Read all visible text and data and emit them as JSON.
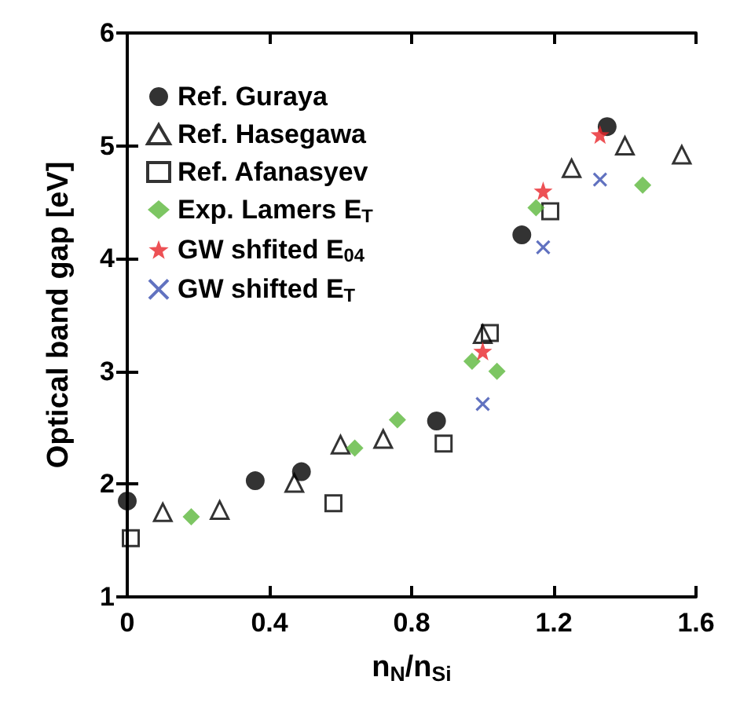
{
  "chart_data": {
    "type": "scatter",
    "xlabel": "n$_{N}$/n$_{Si}$",
    "ylabel": "Optical band gap [eV]",
    "xlim": [
      0,
      1.6
    ],
    "xticks": [
      0,
      0.4,
      0.8,
      1.2,
      1.6
    ],
    "ylim": [
      1,
      6
    ],
    "yticks": [
      1,
      2,
      3,
      4,
      5,
      6
    ],
    "grid": false,
    "legend": "top left",
    "series": [
      {
        "name": "Ref. Guraya",
        "color": "#000000",
        "marker": "circle",
        "x": [
          0,
          0.36,
          0.49,
          0.87,
          1.11,
          1.35
        ],
        "values": [
          1.85,
          2.03,
          2.11,
          2.56,
          4.21,
          5.17
        ]
      },
      {
        "name": "Ref. Hasegawa",
        "color": "#000000",
        "marker": "triangle",
        "x": [
          0.1,
          0.26,
          0.47,
          0.6,
          0.72,
          1.0,
          1.25,
          1.4,
          1.56
        ],
        "values": [
          1.75,
          1.77,
          2.01,
          2.35,
          2.4,
          3.33,
          4.8,
          5.0,
          4.92
        ]
      },
      {
        "name": "Ref. Afanasyev",
        "color": "#000000",
        "marker": "square",
        "x": [
          0.01,
          0.58,
          0.89,
          1.02,
          1.19
        ],
        "values": [
          1.52,
          1.83,
          2.36,
          3.34,
          4.42
        ]
      },
      {
        "name": "Exp. Lamers E$_{T}$",
        "color": "#5cb83c",
        "marker": "diamond",
        "x": [
          0.18,
          0.64,
          0.76,
          0.97,
          1.04,
          1.15,
          1.45
        ],
        "values": [
          1.71,
          2.32,
          2.57,
          3.09,
          3.0,
          4.45,
          4.65
        ]
      },
      {
        "name": "GW shfited E$_{04}$",
        "color": "#e8262a",
        "marker": "star",
        "x": [
          1.0,
          1.17,
          1.33
        ],
        "values": [
          3.18,
          4.6,
          5.1
        ]
      },
      {
        "name": "GW shifted E$_{T}$",
        "color": "#3a4fb0",
        "marker": "cross",
        "x": [
          1.0,
          1.17,
          1.33
        ],
        "values": [
          2.71,
          4.1,
          4.7
        ]
      }
    ]
  }
}
